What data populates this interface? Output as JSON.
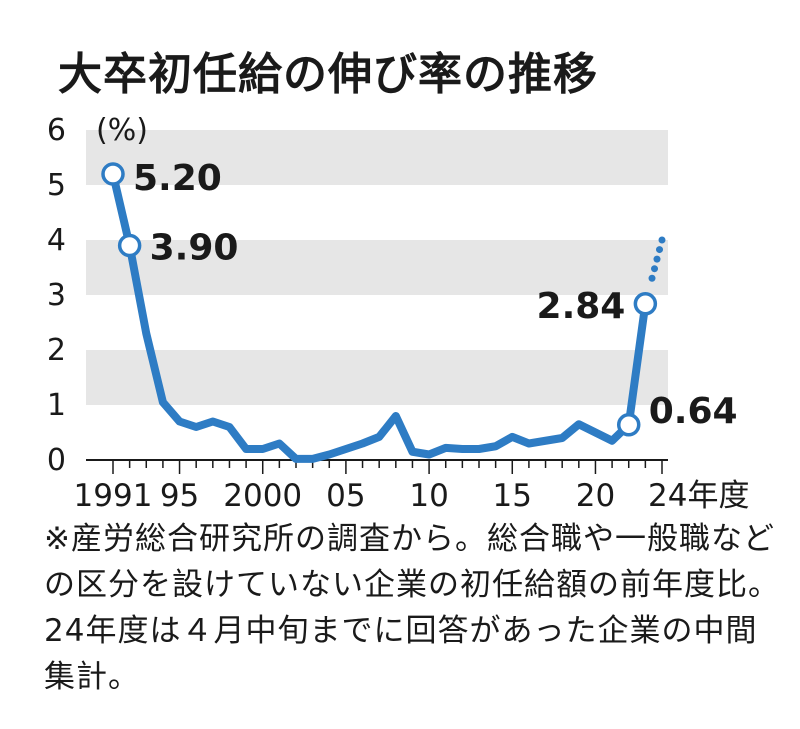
{
  "chart_data": {
    "type": "line",
    "title": "大卒初任給の伸び率の推移",
    "ylabel": "(%)",
    "ylim": [
      0,
      6
    ],
    "yticks": [
      "0",
      "1",
      "2",
      "3",
      "4",
      "5",
      "6"
    ],
    "xlim": [
      1991,
      2024
    ],
    "xticks": [
      {
        "x": 1991,
        "label": "1991"
      },
      {
        "x": 1995,
        "label": "95"
      },
      {
        "x": 2000,
        "label": "2000"
      },
      {
        "x": 2005,
        "label": "05"
      },
      {
        "x": 2010,
        "label": "10"
      },
      {
        "x": 2015,
        "label": "15"
      },
      {
        "x": 2020,
        "label": "20"
      },
      {
        "x": 2024,
        "label": "24年度"
      }
    ],
    "grid": "alternating horizontal bands",
    "series": [
      {
        "x": [
          1991,
          1992,
          1993,
          1994,
          1995,
          1996,
          1997,
          1998,
          1999,
          2000,
          2001,
          2002,
          2003,
          2004,
          2005,
          2006,
          2007,
          2008,
          2009,
          2010,
          2011,
          2012,
          2013,
          2014,
          2015,
          2016,
          2017,
          2018,
          2019,
          2020,
          2021,
          2022,
          2023
        ],
        "y": [
          5.2,
          3.9,
          2.3,
          1.05,
          0.7,
          0.6,
          0.7,
          0.6,
          0.2,
          0.2,
          0.3,
          0.02,
          0.02,
          0.1,
          0.2,
          0.3,
          0.42,
          0.8,
          0.15,
          0.1,
          0.22,
          0.2,
          0.2,
          0.25,
          0.42,
          0.3,
          0.35,
          0.4,
          0.65,
          0.5,
          0.35,
          0.64,
          2.84
        ],
        "color": "#2e7cc4"
      }
    ],
    "projection": {
      "x": [
        2023,
        2024
      ],
      "y": [
        2.84,
        4.0
      ]
    },
    "highlighted": [
      {
        "x": 1991,
        "y": 5.2,
        "label": "5.20"
      },
      {
        "x": 1992,
        "y": 3.9,
        "label": "3.90"
      },
      {
        "x": 2022,
        "y": 0.64,
        "label": "0.64"
      },
      {
        "x": 2023,
        "y": 2.84,
        "label": "2.84"
      }
    ]
  },
  "note": "※産労総合研究所の調査から。総合職や一般職などの区分を設けていない企業の初任給額の前年度比。24年度は４月中旬までに回答があった企業の中間集計。"
}
